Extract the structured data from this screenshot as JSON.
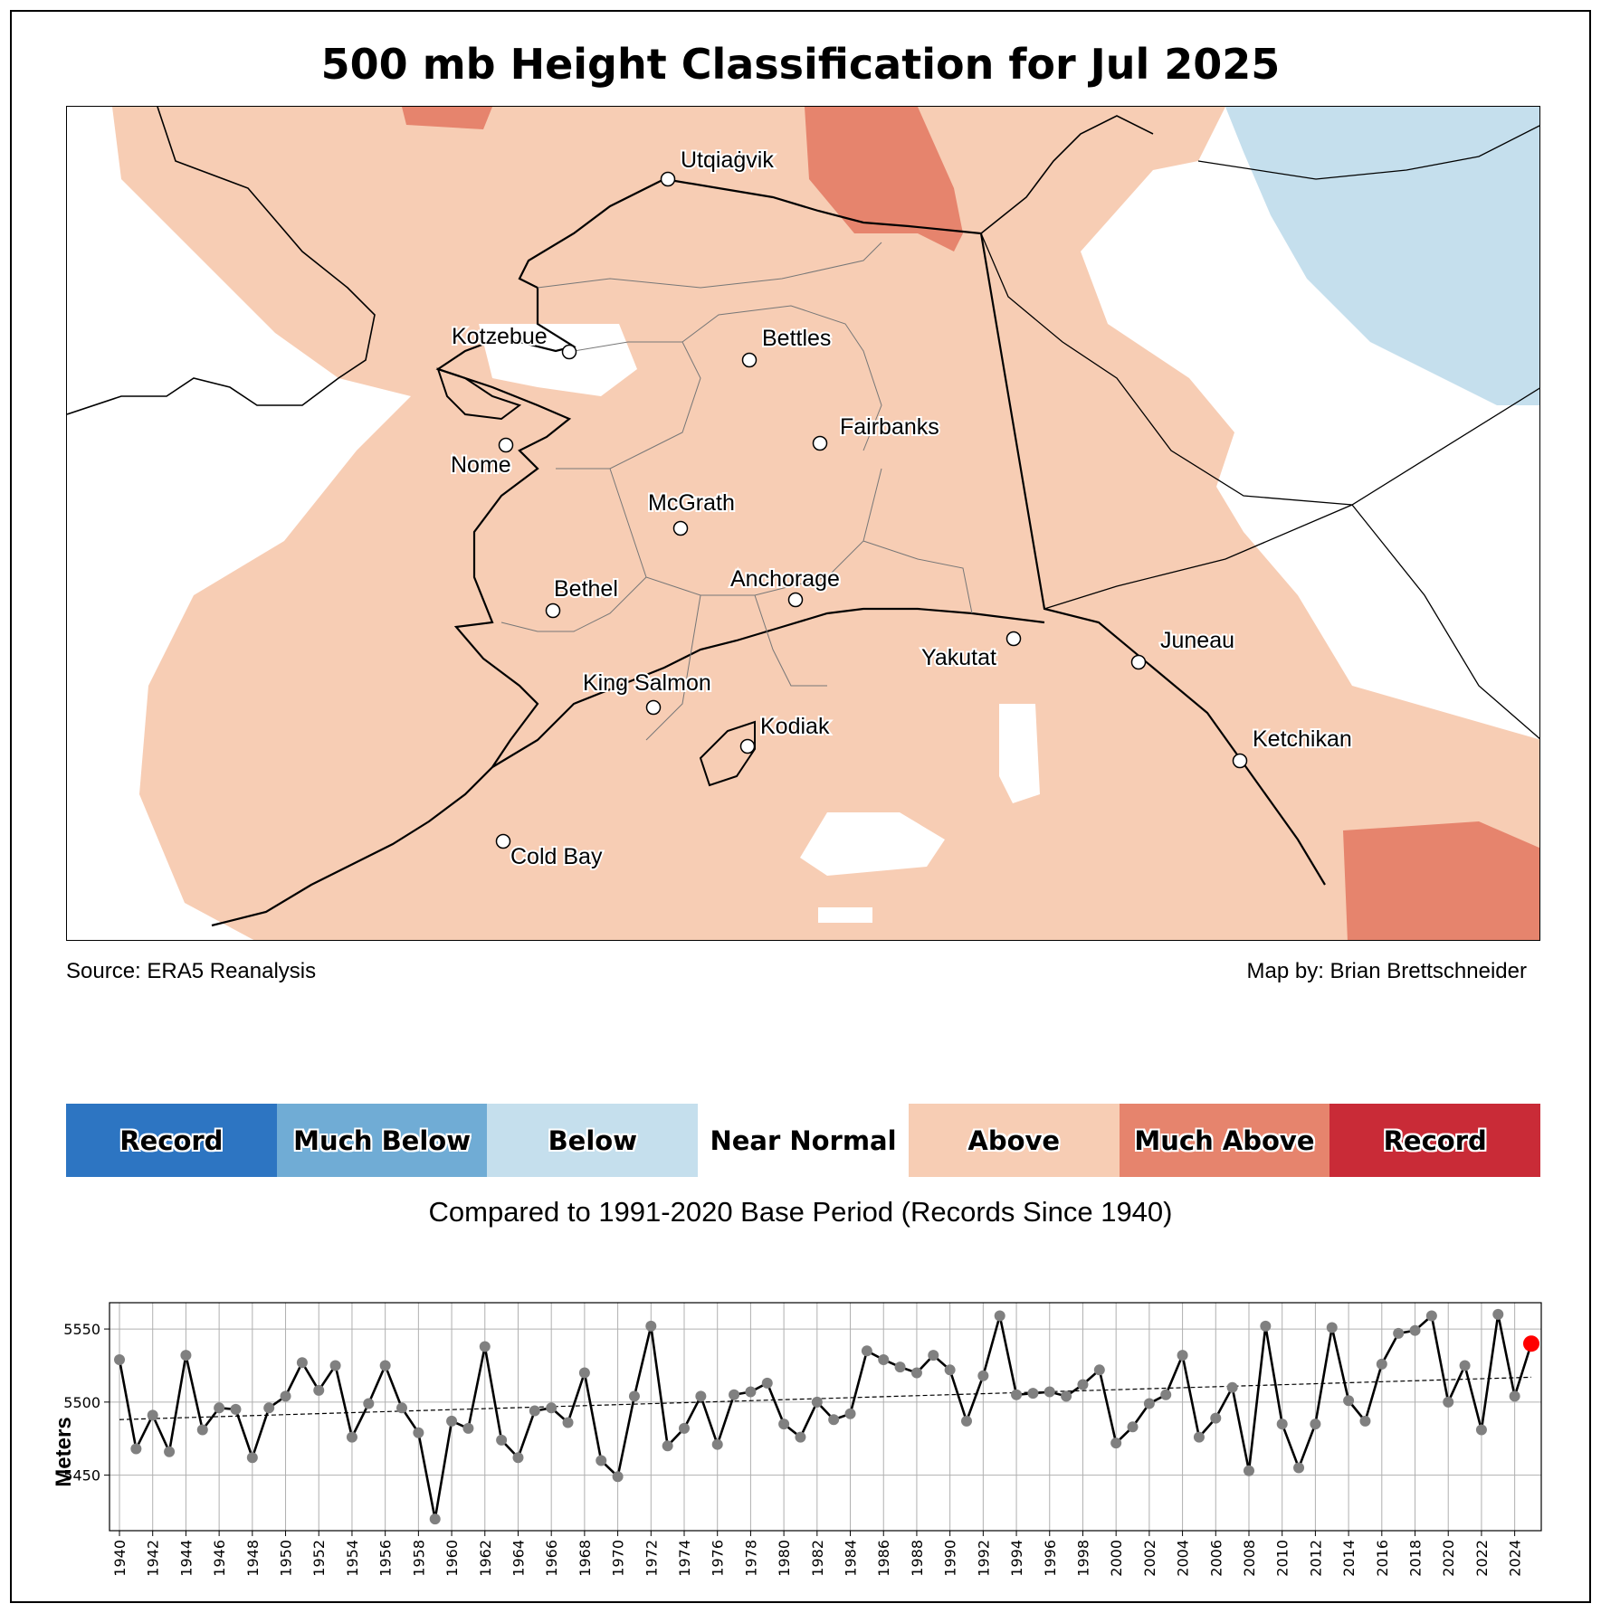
{
  "title": "500 mb Height Classification for Jul 2025",
  "map": {
    "cities": [
      {
        "name": "Utqiaġvik"
      },
      {
        "name": "Kotzebue"
      },
      {
        "name": "Bettles"
      },
      {
        "name": "Fairbanks"
      },
      {
        "name": "Nome"
      },
      {
        "name": "McGrath"
      },
      {
        "name": "Anchorage"
      },
      {
        "name": "Bethel"
      },
      {
        "name": "Yakutat"
      },
      {
        "name": "Juneau"
      },
      {
        "name": "King Salmon"
      },
      {
        "name": "Kodiak"
      },
      {
        "name": "Ketchikan"
      },
      {
        "name": "Cold Bay"
      }
    ],
    "colors": {
      "above": "#f7cdb4",
      "much_above": "#e6846d",
      "below": "#c5dfed",
      "land_outline": "#000000"
    }
  },
  "credits": {
    "source": "Source: ERA5 Reanalysis",
    "author": "Map by: Brian Brettschneider"
  },
  "legend": {
    "categories": [
      {
        "label": "Record",
        "color": "#2d75c2"
      },
      {
        "label": "Much Below",
        "color": "#70acd5"
      },
      {
        "label": "Below",
        "color": "#c5dfed"
      },
      {
        "label": "Near Normal",
        "color": "#ffffff"
      },
      {
        "label": "Above",
        "color": "#f7cdb4"
      },
      {
        "label": "Much Above",
        "color": "#e6846d"
      },
      {
        "label": "Record",
        "color": "#c92b37"
      }
    ],
    "note": "Compared to 1991-2020 Base Period   (Records Since 1940)"
  },
  "chart_data": {
    "type": "line",
    "ylabel": "Meters",
    "xlabel": "",
    "ylim": [
      5412,
      5568
    ],
    "yticks": [
      5450,
      5500,
      5550
    ],
    "grid": true,
    "x": [
      1940,
      1941,
      1942,
      1943,
      1944,
      1945,
      1946,
      1947,
      1948,
      1949,
      1950,
      1951,
      1952,
      1953,
      1954,
      1955,
      1956,
      1957,
      1958,
      1959,
      1960,
      1961,
      1962,
      1963,
      1964,
      1965,
      1966,
      1967,
      1968,
      1969,
      1970,
      1971,
      1972,
      1973,
      1974,
      1975,
      1976,
      1977,
      1978,
      1979,
      1980,
      1981,
      1982,
      1983,
      1984,
      1985,
      1986,
      1987,
      1988,
      1989,
      1990,
      1991,
      1992,
      1993,
      1994,
      1995,
      1996,
      1997,
      1998,
      1999,
      2000,
      2001,
      2002,
      2003,
      2004,
      2005,
      2006,
      2007,
      2008,
      2009,
      2010,
      2011,
      2012,
      2013,
      2014,
      2015,
      2016,
      2017,
      2018,
      2019,
      2020,
      2021,
      2022,
      2023,
      2024,
      2025
    ],
    "values": [
      5529,
      5468,
      5491,
      5466,
      5532,
      5481,
      5496,
      5495,
      5462,
      5496,
      5504,
      5527,
      5508,
      5525,
      5476,
      5499,
      5525,
      5496,
      5479,
      5420,
      5487,
      5482,
      5538,
      5474,
      5462,
      5494,
      5496,
      5486,
      5520,
      5460,
      5449,
      5504,
      5552,
      5470,
      5482,
      5504,
      5471,
      5505,
      5507,
      5513,
      5485,
      5476,
      5500,
      5488,
      5492,
      5535,
      5529,
      5524,
      5520,
      5532,
      5522,
      5487,
      5518,
      5559,
      5505,
      5506,
      5507,
      5504,
      5512,
      5522,
      5472,
      5483,
      5499,
      5505,
      5532,
      5476,
      5489,
      5510,
      5453,
      5552,
      5485,
      5455,
      5485,
      5551,
      5501,
      5487,
      5526,
      5547,
      5549,
      5559,
      5500,
      5525,
      5481,
      5560,
      5504,
      5540
    ],
    "trend": {
      "start": 5488,
      "end": 5517
    },
    "highlight": {
      "year": 2025,
      "color": "#ff0000"
    },
    "xticks": [
      1940,
      1942,
      1944,
      1946,
      1948,
      1950,
      1952,
      1954,
      1956,
      1958,
      1960,
      1962,
      1964,
      1966,
      1968,
      1970,
      1972,
      1974,
      1976,
      1978,
      1980,
      1982,
      1984,
      1986,
      1988,
      1990,
      1992,
      1994,
      1996,
      1998,
      2000,
      2002,
      2004,
      2006,
      2008,
      2010,
      2012,
      2014,
      2016,
      2018,
      2020,
      2022,
      2024
    ]
  }
}
